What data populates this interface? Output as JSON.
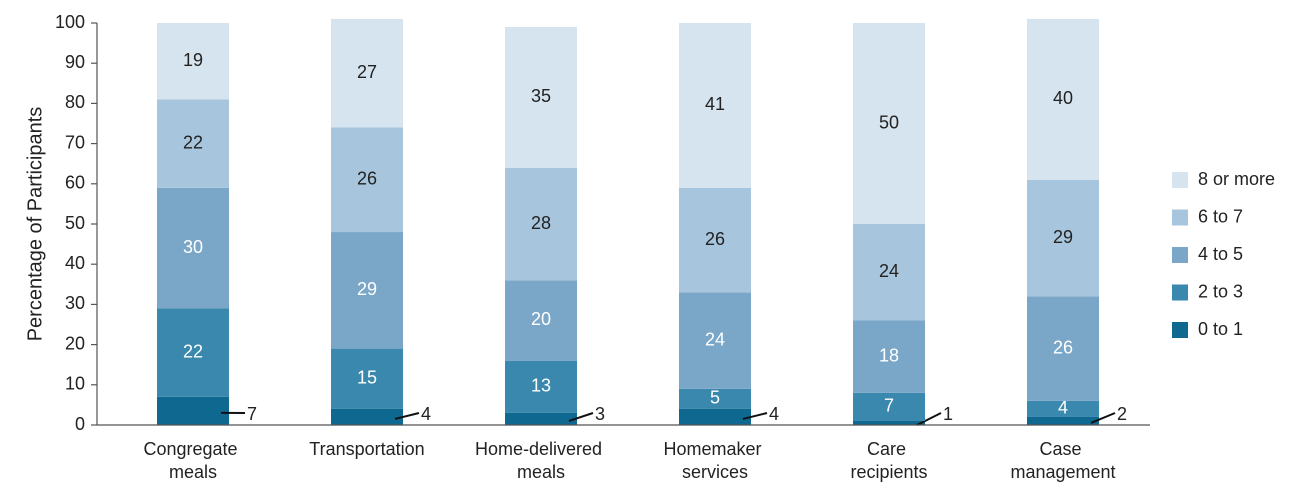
{
  "chart_data": {
    "type": "stacked_bar",
    "y_label": "Percentage of Participants",
    "categories": [
      "Congregate meals",
      "Transportation",
      "Home-delivered meals",
      "Homemaker services",
      "Care recipients",
      "Case management"
    ],
    "series": [
      {
        "name": "0 to 1",
        "color": "#0f6890",
        "values": [
          7,
          4,
          3,
          4,
          1,
          2
        ]
      },
      {
        "name": "2 to 3",
        "color": "#3a88ad",
        "values": [
          22,
          15,
          13,
          5,
          7,
          4
        ]
      },
      {
        "name": "4 to 5",
        "color": "#7aa7c8",
        "values": [
          30,
          29,
          20,
          24,
          18,
          26
        ]
      },
      {
        "name": "6 to 7",
        "color": "#a7c5dc",
        "values": [
          22,
          26,
          28,
          26,
          24,
          29
        ]
      },
      {
        "name": "8 or more",
        "color": "#d5e4ef",
        "values": [
          19,
          27,
          35,
          41,
          50,
          40
        ]
      }
    ],
    "ylim": [
      0,
      100
    ],
    "yticks": [
      0,
      10,
      20,
      30,
      40,
      50,
      60,
      70,
      80,
      90,
      100
    ],
    "grid": false,
    "legend": "right"
  }
}
